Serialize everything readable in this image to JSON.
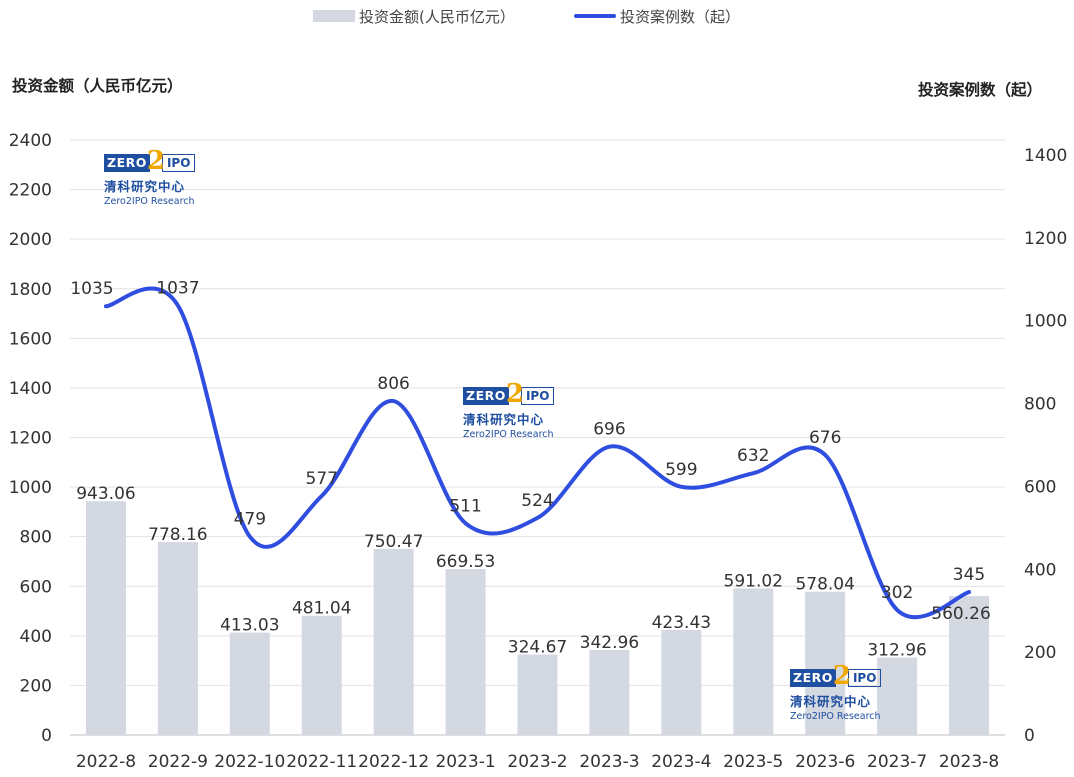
{
  "legend": {
    "bar_label": "投资金额(人民币亿元）",
    "line_label": "投资案例数（起）"
  },
  "axes": {
    "left_title": "投资金额（人民币亿元）",
    "right_title": "投资案例数（起）"
  },
  "logo": {
    "zero": "ZERO",
    "two": "2",
    "ipo": "IPO",
    "cn": "清科研究中心",
    "en": "Zero2IPO Research"
  },
  "colors": {
    "bar": "#d3d8e1",
    "line": "#2f4ee0",
    "grid": "#e2e2e2",
    "label": "#333333"
  },
  "chart_data": {
    "type": "bar+line",
    "categories": [
      "2022-8",
      "2022-9",
      "2022-10",
      "2022-11",
      "2022-12",
      "2023-1",
      "2023-2",
      "2023-3",
      "2023-4",
      "2023-5",
      "2023-6",
      "2023-7",
      "2023-8"
    ],
    "series": [
      {
        "name": "投资金额(人民币亿元）",
        "type": "bar",
        "axis": "left",
        "values": [
          943.06,
          778.16,
          413.03,
          481.04,
          750.47,
          669.53,
          324.67,
          342.96,
          423.43,
          591.02,
          578.04,
          312.96,
          560.26
        ],
        "labels": [
          "943.06",
          "778.16",
          "413.03",
          "481.04",
          "750.47",
          "669.53",
          "324.67",
          "342.96",
          "423.43",
          "591.02",
          "578.04",
          "312.96",
          "560.26"
        ]
      },
      {
        "name": "投资案例数（起）",
        "type": "line",
        "axis": "right",
        "smooth": true,
        "values": [
          1035,
          1037,
          479,
          577,
          806,
          511,
          524,
          696,
          599,
          632,
          676,
          302,
          345
        ],
        "labels": [
          "1035",
          "1037",
          "479",
          "577",
          "806",
          "511",
          "524",
          "696",
          "599",
          "632",
          "676",
          "302",
          "345"
        ]
      }
    ],
    "y_left": {
      "min": 0,
      "max": 2400,
      "ticks": [
        "0",
        "200",
        "400",
        "600",
        "800",
        "1000",
        "1200",
        "1400",
        "1600",
        "1800",
        "2000",
        "2200",
        "2400"
      ]
    },
    "y_right": {
      "min": 0,
      "max": 1400,
      "ticks": [
        "0",
        "200",
        "400",
        "600",
        "800",
        "1000",
        "1200",
        "1400"
      ]
    },
    "grid": true,
    "legend_position": "top-center"
  }
}
